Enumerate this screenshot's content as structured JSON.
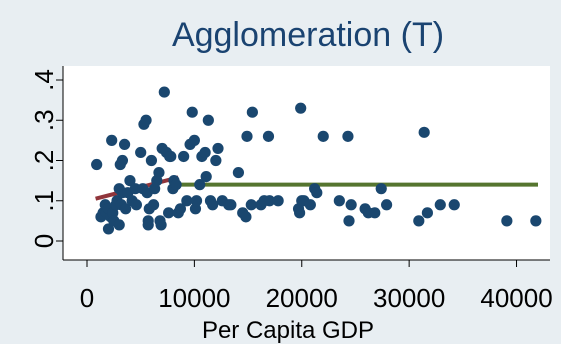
{
  "chart_data": {
    "type": "scatter",
    "title": "Agglomeration (T)",
    "xlabel": "Per Capita GDP",
    "ylabel": "",
    "xlim": [
      0,
      42000
    ],
    "ylim": [
      0,
      0.4
    ],
    "x_ticks": [
      0,
      10000,
      20000,
      30000,
      40000
    ],
    "x_tick_labels": [
      "0",
      "10000",
      "20000",
      "30000",
      "40000"
    ],
    "y_ticks": [
      0,
      0.1,
      0.2,
      0.3,
      0.4
    ],
    "y_tick_labels": [
      "0",
      ".1",
      ".2",
      ".3",
      ".4"
    ],
    "grid": false,
    "legend": "none",
    "colors": {
      "background": "#e8eef2",
      "plot_background": "#ffffff",
      "points": "#1a476f",
      "fit_low": "#90353b",
      "fit_high": "#55752f",
      "title": "#1a4371"
    },
    "points": [
      [
        900,
        0.19
      ],
      [
        1300,
        0.06
      ],
      [
        1500,
        0.07
      ],
      [
        1700,
        0.09
      ],
      [
        1800,
        0.07
      ],
      [
        2000,
        0.08
      ],
      [
        2000,
        0.03
      ],
      [
        2200,
        0.06
      ],
      [
        2300,
        0.25
      ],
      [
        2400,
        0.07
      ],
      [
        2500,
        0.05
      ],
      [
        2700,
        0.09
      ],
      [
        2800,
        0.1
      ],
      [
        3000,
        0.13
      ],
      [
        3000,
        0.04
      ],
      [
        3100,
        0.19
      ],
      [
        3200,
        0.09
      ],
      [
        3300,
        0.12
      ],
      [
        3300,
        0.2
      ],
      [
        3500,
        0.24
      ],
      [
        3600,
        0.08
      ],
      [
        3800,
        0.12
      ],
      [
        4000,
        0.15
      ],
      [
        4200,
        0.1
      ],
      [
        4500,
        0.13
      ],
      [
        4600,
        0.09
      ],
      [
        5000,
        0.22
      ],
      [
        5200,
        0.13
      ],
      [
        5300,
        0.29
      ],
      [
        5500,
        0.3
      ],
      [
        5600,
        0.12
      ],
      [
        5700,
        0.05
      ],
      [
        5700,
        0.04
      ],
      [
        5800,
        0.08
      ],
      [
        6000,
        0.2
      ],
      [
        6200,
        0.09
      ],
      [
        6300,
        0.13
      ],
      [
        6500,
        0.15
      ],
      [
        6700,
        0.17
      ],
      [
        6800,
        0.05
      ],
      [
        6900,
        0.04
      ],
      [
        7000,
        0.23
      ],
      [
        7200,
        0.37
      ],
      [
        7400,
        0.22
      ],
      [
        7600,
        0.07
      ],
      [
        7700,
        0.21
      ],
      [
        7800,
        0.21
      ],
      [
        8000,
        0.13
      ],
      [
        8100,
        0.15
      ],
      [
        8300,
        0.14
      ],
      [
        8500,
        0.07
      ],
      [
        8700,
        0.08
      ],
      [
        9000,
        0.21
      ],
      [
        9300,
        0.1
      ],
      [
        9600,
        0.24
      ],
      [
        9800,
        0.32
      ],
      [
        10000,
        0.25
      ],
      [
        10100,
        0.08
      ],
      [
        10200,
        0.1
      ],
      [
        10500,
        0.14
      ],
      [
        10700,
        0.21
      ],
      [
        11000,
        0.22
      ],
      [
        11100,
        0.16
      ],
      [
        11300,
        0.3
      ],
      [
        11500,
        0.1
      ],
      [
        11700,
        0.09
      ],
      [
        12000,
        0.2
      ],
      [
        12200,
        0.23
      ],
      [
        12600,
        0.1
      ],
      [
        13200,
        0.09
      ],
      [
        13400,
        0.09
      ],
      [
        14100,
        0.17
      ],
      [
        14500,
        0.07
      ],
      [
        14800,
        0.06
      ],
      [
        14900,
        0.26
      ],
      [
        15300,
        0.09
      ],
      [
        15400,
        0.32
      ],
      [
        16200,
        0.09
      ],
      [
        16500,
        0.1
      ],
      [
        16900,
        0.26
      ],
      [
        17000,
        0.1
      ],
      [
        17800,
        0.1
      ],
      [
        19700,
        0.08
      ],
      [
        19800,
        0.07
      ],
      [
        19900,
        0.33
      ],
      [
        20000,
        0.1
      ],
      [
        20200,
        0.1
      ],
      [
        20800,
        0.09
      ],
      [
        21200,
        0.13
      ],
      [
        21400,
        0.12
      ],
      [
        22000,
        0.26
      ],
      [
        23500,
        0.1
      ],
      [
        24300,
        0.26
      ],
      [
        24400,
        0.05
      ],
      [
        24600,
        0.09
      ],
      [
        25900,
        0.08
      ],
      [
        26200,
        0.07
      ],
      [
        26800,
        0.07
      ],
      [
        27400,
        0.13
      ],
      [
        27900,
        0.09
      ],
      [
        30900,
        0.05
      ],
      [
        31400,
        0.27
      ],
      [
        31700,
        0.07
      ],
      [
        32900,
        0.09
      ],
      [
        34200,
        0.09
      ],
      [
        39100,
        0.05
      ],
      [
        41800,
        0.05
      ]
    ],
    "fit_lines": [
      {
        "x": [
          800,
          8500
        ],
        "y": [
          0.105,
          0.158
        ],
        "color": "#90353b"
      },
      {
        "x": [
          8200,
          42000
        ],
        "y": [
          0.14,
          0.14
        ],
        "color": "#55752f"
      }
    ]
  }
}
